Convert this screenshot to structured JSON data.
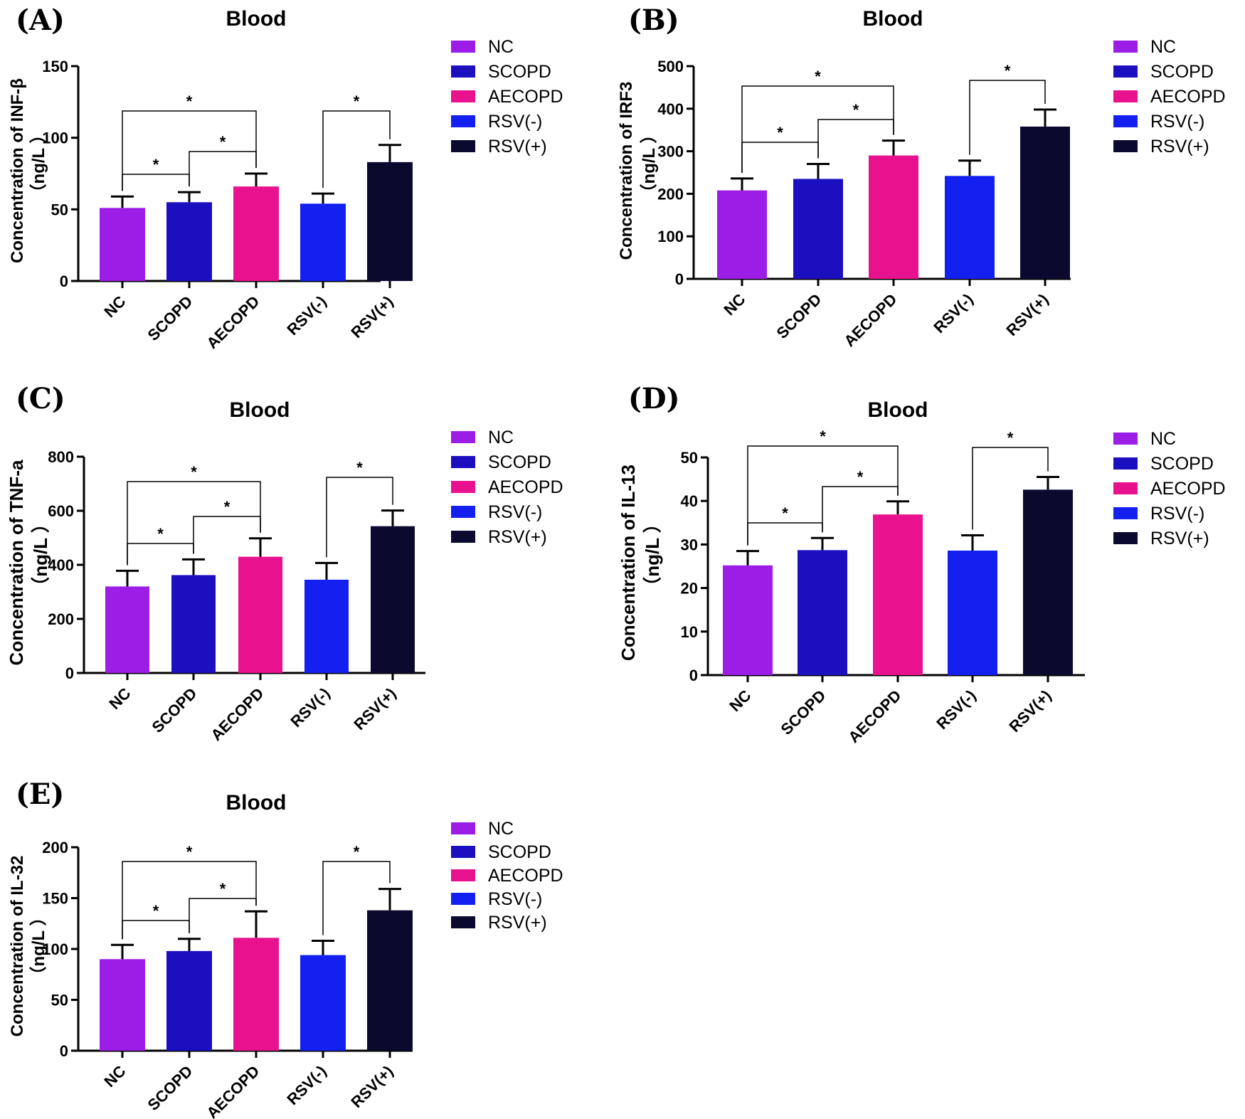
{
  "figure": {
    "colors": {
      "NC": "#9b1de6",
      "SCOPD": "#1c0fbf",
      "AECOPD": "#e8128e",
      "RSV(-)": "#1420f0",
      "RSV(+)": "#0b0a2e"
    }
  },
  "chart_data": [
    {
      "panel": "(A)",
      "type": "bar",
      "title": "Blood",
      "ylabel": "Concentration of INF-β",
      "ylabel_unit": "（ng/L ）",
      "categories": [
        "NC",
        "SCOPD",
        "AECOPD",
        "RSV(-)",
        "RSV(+)"
      ],
      "values": [
        51,
        55,
        66,
        54,
        83
      ],
      "errors": [
        8,
        7,
        9,
        7,
        12
      ],
      "ylim": [
        0,
        150
      ],
      "yticks": [
        0,
        50,
        100,
        150
      ],
      "legend": [
        "NC",
        "SCOPD",
        "AECOPD",
        "RSV(-)",
        "RSV(+)"
      ],
      "significance": [
        {
          "from": 0,
          "to": 1,
          "label": "*"
        },
        {
          "from": 1,
          "to": 2,
          "label": "*"
        },
        {
          "from": 0,
          "to": 2,
          "label": "*"
        },
        {
          "from": 3,
          "to": 4,
          "label": "*"
        }
      ]
    },
    {
      "panel": "(B)",
      "type": "bar",
      "title": "Blood",
      "ylabel": "Concentration of IRF3",
      "ylabel_unit": "（ng/L ）",
      "categories": [
        "NC",
        "SCOPD",
        "AECOPD",
        "RSV(-)",
        "RSV(+)"
      ],
      "values": [
        208,
        235,
        290,
        242,
        358
      ],
      "errors": [
        28,
        35,
        35,
        36,
        40
      ],
      "ylim": [
        0,
        500
      ],
      "yticks": [
        0,
        100,
        200,
        300,
        400,
        500
      ],
      "legend": [
        "NC",
        "SCOPD",
        "AECOPD",
        "RSV(-)",
        "RSV(+)"
      ],
      "significance": [
        {
          "from": 0,
          "to": 1,
          "label": "*"
        },
        {
          "from": 1,
          "to": 2,
          "label": "*"
        },
        {
          "from": 0,
          "to": 2,
          "label": "*"
        },
        {
          "from": 3,
          "to": 4,
          "label": "*"
        }
      ]
    },
    {
      "panel": "(C)",
      "type": "bar",
      "title": "Blood",
      "ylabel": "Concentration of TNF-a",
      "ylabel_unit": "（ng/L ）",
      "categories": [
        "NC",
        "SCOPD",
        "AECOPD",
        "RSV(-)",
        "RSV(+)"
      ],
      "values": [
        320,
        362,
        430,
        345,
        543
      ],
      "errors": [
        58,
        58,
        68,
        62,
        58
      ],
      "ylim": [
        0,
        800
      ],
      "yticks": [
        0,
        200,
        400,
        600,
        800
      ],
      "legend": [
        "NC",
        "SCOPD",
        "AECOPD",
        "RSV(-)",
        "RSV(+)"
      ],
      "significance": [
        {
          "from": 0,
          "to": 1,
          "label": "*"
        },
        {
          "from": 1,
          "to": 2,
          "label": "*"
        },
        {
          "from": 0,
          "to": 2,
          "label": "*"
        },
        {
          "from": 3,
          "to": 4,
          "label": "*"
        }
      ]
    },
    {
      "panel": "(D)",
      "type": "bar",
      "title": "Blood",
      "ylabel": "Concentration of IL-13",
      "ylabel_unit": "（ng/L ）",
      "categories": [
        "NC",
        "SCOPD",
        "AECOPD",
        "RSV(-)",
        "RSV(+)"
      ],
      "values": [
        25.2,
        28.7,
        36.9,
        28.6,
        42.6
      ],
      "errors": [
        3.3,
        2.8,
        3.0,
        3.5,
        2.9
      ],
      "ylim": [
        0,
        50
      ],
      "yticks": [
        0,
        10,
        20,
        30,
        40,
        50
      ],
      "legend": [
        "NC",
        "SCOPD",
        "AECOPD",
        "RSV(-)",
        "RSV(+)"
      ],
      "significance": [
        {
          "from": 0,
          "to": 1,
          "label": "*"
        },
        {
          "from": 1,
          "to": 2,
          "label": "*"
        },
        {
          "from": 0,
          "to": 2,
          "label": "*"
        },
        {
          "from": 3,
          "to": 4,
          "label": "*"
        }
      ]
    },
    {
      "panel": "(E)",
      "type": "bar",
      "title": "Blood",
      "ylabel": "Concentration of IL-32",
      "ylabel_unit": "（ng/L ）",
      "categories": [
        "NC",
        "SCOPD",
        "AECOPD",
        "RSV(-)",
        "RSV(+)"
      ],
      "values": [
        90,
        98,
        111,
        94,
        138
      ],
      "errors": [
        14,
        12,
        26,
        14,
        21
      ],
      "ylim": [
        0,
        200
      ],
      "yticks": [
        0,
        50,
        100,
        150,
        200
      ],
      "legend": [
        "NC",
        "SCOPD",
        "AECOPD",
        "RSV(-)",
        "RSV(+)"
      ],
      "significance": [
        {
          "from": 0,
          "to": 1,
          "label": "*"
        },
        {
          "from": 1,
          "to": 2,
          "label": "*"
        },
        {
          "from": 0,
          "to": 2,
          "label": "*"
        },
        {
          "from": 3,
          "to": 4,
          "label": "*"
        }
      ]
    }
  ]
}
